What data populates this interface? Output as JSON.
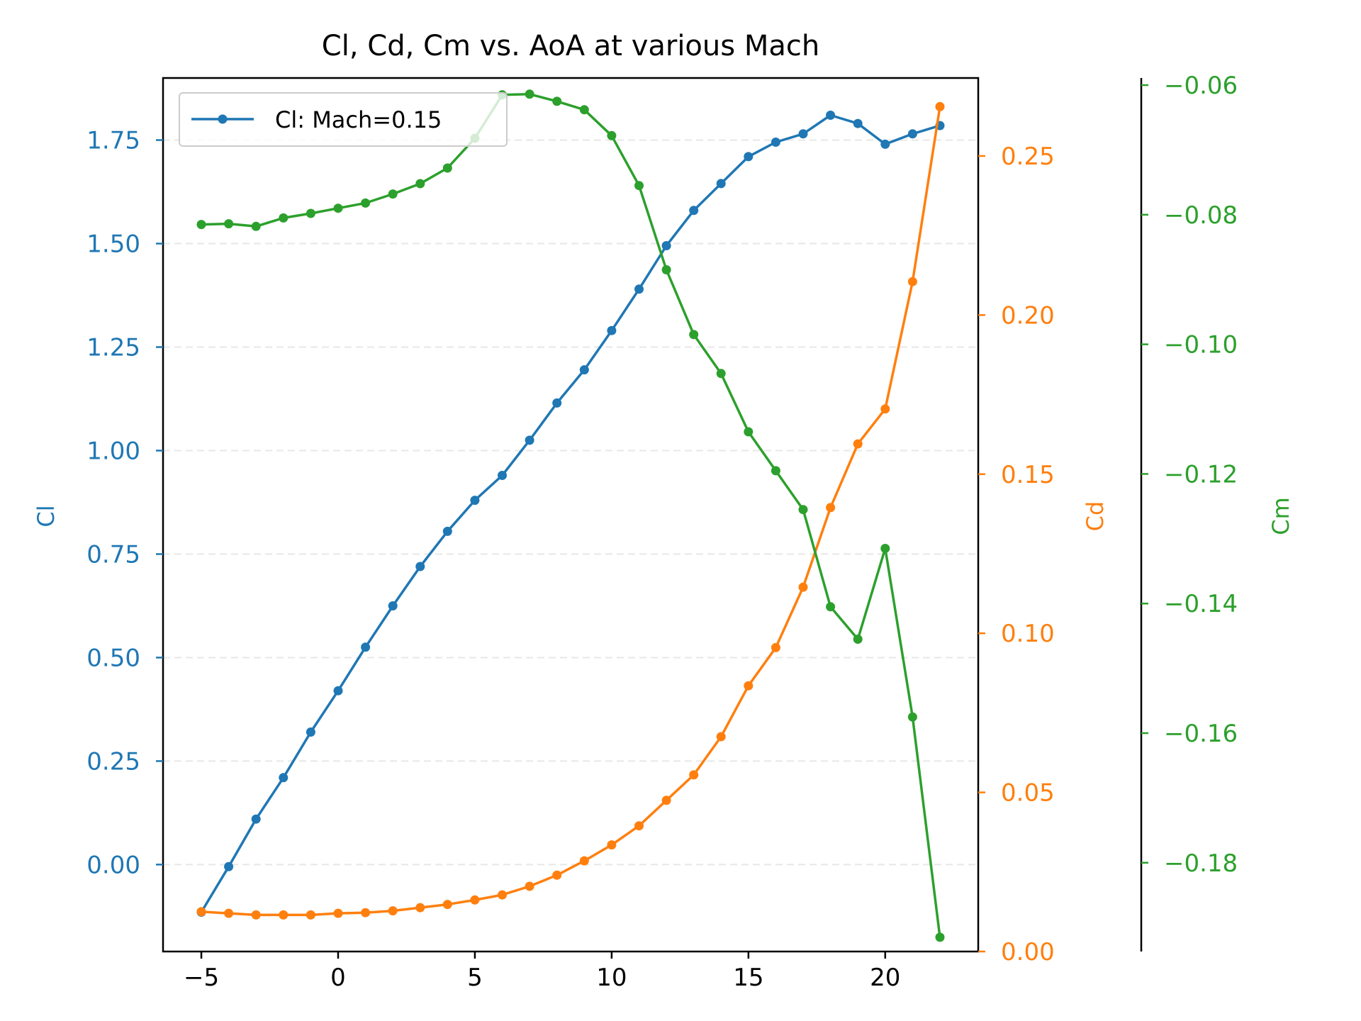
{
  "chart_data": {
    "type": "line",
    "title": "Cl, Cd, Cm vs. AoA at various Mach",
    "xlabel": "",
    "xlim": [
      -6.4,
      23.4
    ],
    "xticks": [
      -5,
      0,
      5,
      10,
      15,
      20
    ],
    "xtick_labels": [
      "−5",
      "0",
      "5",
      "10",
      "15",
      "20"
    ],
    "x": [
      -5,
      -4,
      -3,
      -2,
      -1,
      0,
      1,
      2,
      3,
      4,
      5,
      6,
      7,
      8,
      9,
      10,
      11,
      12,
      13,
      14,
      15,
      16,
      17,
      18,
      19,
      20,
      21,
      22
    ],
    "grid": "horizontal dashed (left axis)",
    "legend": {
      "placement": "top-left",
      "entries": [
        "Cl: Mach=0.15"
      ]
    },
    "axes": {
      "left": {
        "label": "Cl",
        "color": "#1f77b4",
        "ylim": [
          -0.21,
          1.9
        ],
        "ticks": [
          0.0,
          0.25,
          0.5,
          0.75,
          1.0,
          1.25,
          1.5,
          1.75
        ],
        "tick_labels": [
          "0.00",
          "0.25",
          "0.50",
          "0.75",
          "1.00",
          "1.25",
          "1.50",
          "1.75"
        ]
      },
      "right": {
        "label": "Cd",
        "color": "#ff7f0e",
        "ylim": [
          0.0,
          0.2745
        ],
        "ticks": [
          0.0,
          0.05,
          0.1,
          0.15,
          0.2,
          0.25
        ],
        "tick_labels": [
          "0.00",
          "0.05",
          "0.10",
          "0.15",
          "0.20",
          "0.25"
        ]
      },
      "far_right": {
        "label": "Cm",
        "color": "#2ca02c",
        "ylim": [
          -0.1937,
          -0.0589
        ],
        "ticks": [
          -0.18,
          -0.16,
          -0.14,
          -0.12,
          -0.1,
          -0.08,
          -0.06
        ],
        "tick_labels": [
          "−0.18",
          "−0.16",
          "−0.14",
          "−0.12",
          "−0.10",
          "−0.08",
          "−0.06"
        ]
      }
    },
    "series": [
      {
        "name": "Cl: Mach=0.15",
        "axis": "left",
        "color": "#1f77b4",
        "values": [
          -0.115,
          -0.005,
          0.11,
          0.21,
          0.32,
          0.42,
          0.525,
          0.625,
          0.72,
          0.805,
          0.88,
          0.94,
          1.025,
          1.115,
          1.195,
          1.29,
          1.39,
          1.495,
          1.58,
          1.645,
          1.71,
          1.745,
          1.765,
          1.81,
          1.79,
          1.74,
          1.765,
          1.785
        ]
      },
      {
        "axis": "right",
        "color": "#ff7f0e",
        "values": [
          0.0125,
          0.012,
          0.0115,
          0.0115,
          0.0115,
          0.012,
          0.0122,
          0.0128,
          0.0138,
          0.0148,
          0.0162,
          0.0178,
          0.0205,
          0.024,
          0.0285,
          0.0335,
          0.0395,
          0.0475,
          0.0555,
          0.0675,
          0.0835,
          0.0955,
          0.1145,
          0.1395,
          0.1595,
          0.1705,
          0.2105,
          0.2655
        ]
      },
      {
        "axis": "far_right",
        "color": "#2ca02c",
        "values": [
          -0.0815,
          -0.0814,
          -0.0818,
          -0.0805,
          -0.0798,
          -0.079,
          -0.0782,
          -0.0768,
          -0.0752,
          -0.0728,
          -0.0682,
          -0.0615,
          -0.0614,
          -0.0625,
          -0.0638,
          -0.0678,
          -0.0755,
          -0.0885,
          -0.0985,
          -0.1045,
          -0.1135,
          -0.1195,
          -0.1255,
          -0.1405,
          -0.1455,
          -0.1315,
          -0.1575,
          -0.1915
        ]
      }
    ]
  }
}
